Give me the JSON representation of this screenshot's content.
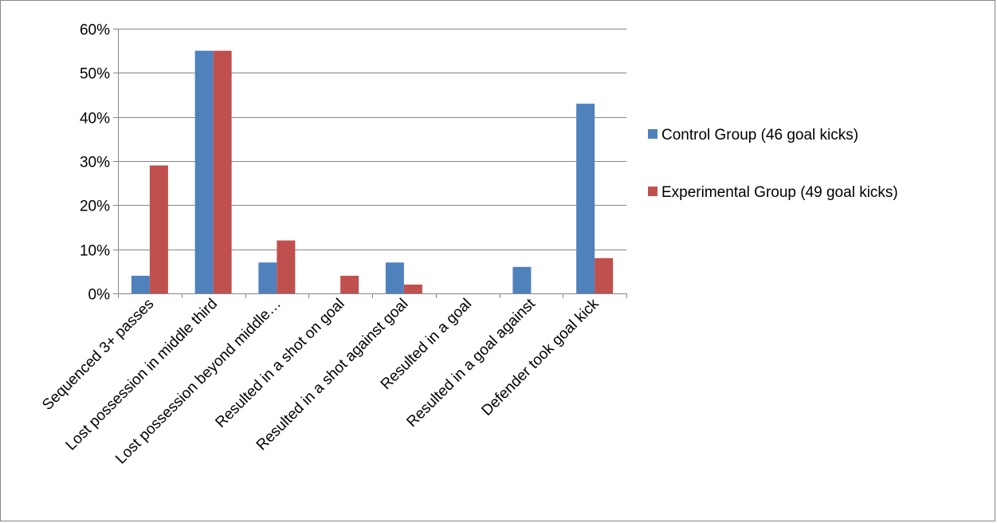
{
  "chart_data": {
    "type": "bar",
    "title": "",
    "xlabel": "",
    "ylabel": "",
    "categories": [
      "Sequenced 3+ passes",
      "Lost possession in middle third",
      "Lost possession beyond middle…",
      "Resulted in a shot on goal",
      "Resulted in a shot against goal",
      "Resulted in a goal",
      "Resulted in a goal against",
      "Defender took goal kick"
    ],
    "series": [
      {
        "name": "Control Group (46 goal kicks)",
        "color": "#4F81BD",
        "values": [
          4,
          55,
          7,
          0,
          7,
          0,
          6,
          43
        ]
      },
      {
        "name": "Experimental Group (49 goal kicks)",
        "color": "#C0504D",
        "values": [
          29,
          55,
          12,
          4,
          2,
          0,
          0,
          8
        ]
      }
    ],
    "ylim": [
      0,
      60
    ],
    "yticks": [
      0,
      10,
      20,
      30,
      40,
      50,
      60
    ],
    "ytick_labels": [
      "0%",
      "10%",
      "20%",
      "30%",
      "40%",
      "50%",
      "60%"
    ],
    "grid": true,
    "legend_position": "right"
  }
}
